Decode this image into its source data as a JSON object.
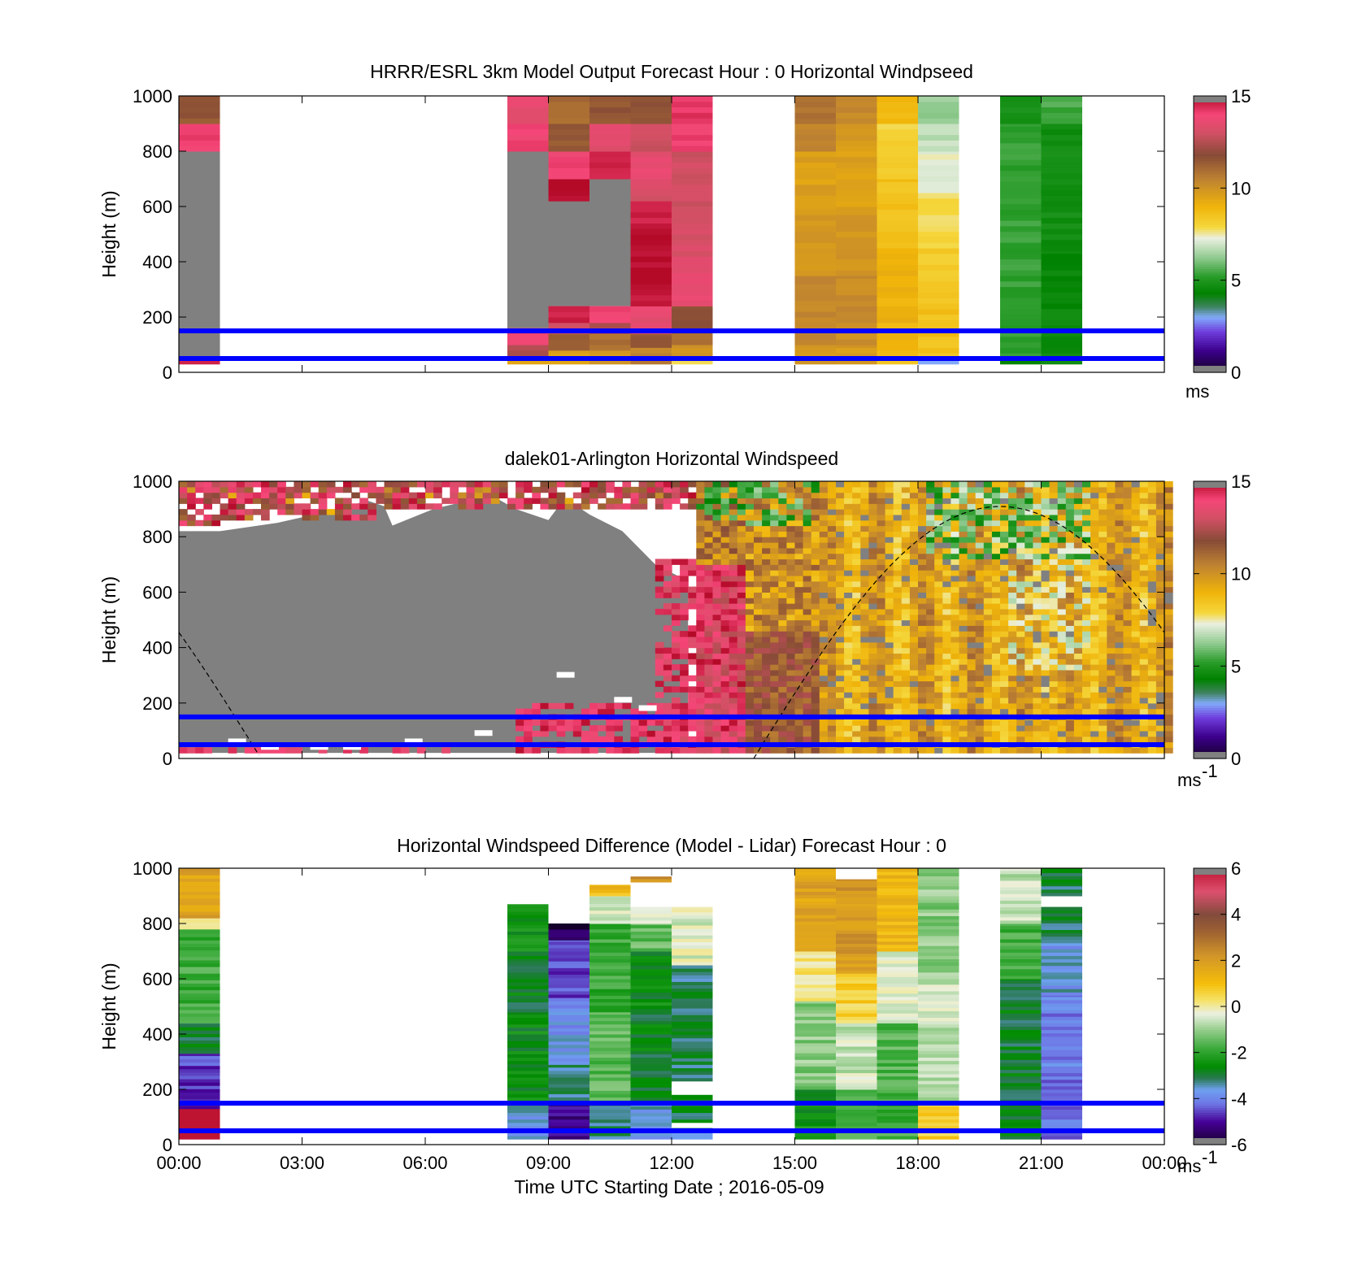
{
  "chart_data": [
    {
      "type": "heatmap",
      "title": "HRRR/ESRL 3km Model Output   Forecast Hour : 0 Horizontal Windpseed",
      "ylabel": "Height (m)",
      "ylim": [
        0,
        1000
      ],
      "yticks": [
        "0",
        "200",
        "400",
        "600",
        "800",
        "1000"
      ],
      "xlim": [
        0,
        24
      ],
      "colorbar": {
        "min": 0,
        "max": 15,
        "ticks": [
          "0",
          "5",
          "10",
          "15"
        ],
        "unit": "ms",
        "unit_sup": ""
      },
      "reference_lines": [
        {
          "y": 150,
          "color": "#0000ff"
        },
        {
          "y": 50,
          "color": "#0000ff"
        }
      ],
      "columns": [
        {
          "x0": 0.0,
          "x1": 1.0,
          "cells": [
            [
              30,
              50,
              14.5
            ],
            [
              50,
              800,
              -1
            ],
            [
              800,
              900,
              14
            ],
            [
              900,
              1000,
              11.5
            ]
          ]
        },
        {
          "x0": 8.0,
          "x1": 9.0,
          "cells": [
            [
              30,
              60,
              9.5
            ],
            [
              60,
              100,
              12.5
            ],
            [
              100,
              160,
              14
            ],
            [
              160,
              800,
              -1
            ],
            [
              800,
              900,
              14
            ],
            [
              900,
              1000,
              13.5
            ]
          ]
        },
        {
          "x0": 9.0,
          "x1": 10.0,
          "cells": [
            [
              30,
              80,
              9.5
            ],
            [
              80,
              140,
              11.5
            ],
            [
              140,
              180,
              13
            ],
            [
              180,
              240,
              14.5
            ],
            [
              240,
              620,
              -1
            ],
            [
              620,
              700,
              15
            ],
            [
              700,
              800,
              14
            ],
            [
              800,
              900,
              11.5
            ],
            [
              900,
              1000,
              11
            ]
          ]
        },
        {
          "x0": 10.0,
          "x1": 11.0,
          "cells": [
            [
              30,
              80,
              10
            ],
            [
              80,
              140,
              11
            ],
            [
              140,
              180,
              12.5
            ],
            [
              180,
              240,
              14
            ],
            [
              240,
              700,
              -1
            ],
            [
              700,
              800,
              14.5
            ],
            [
              800,
              900,
              13.5
            ],
            [
              900,
              1000,
              11.5
            ]
          ]
        },
        {
          "x0": 11.0,
          "x1": 12.0,
          "cells": [
            [
              30,
              90,
              10.5
            ],
            [
              90,
              140,
              11.5
            ],
            [
              140,
              240,
              13.5
            ],
            [
              240,
              320,
              14.8
            ],
            [
              320,
              520,
              15
            ],
            [
              520,
              620,
              14.6
            ],
            [
              620,
              700,
              13.2
            ],
            [
              700,
              800,
              13.5
            ],
            [
              800,
              900,
              13
            ],
            [
              900,
              1000,
              11.5
            ]
          ]
        },
        {
          "x0": 12.0,
          "x1": 13.0,
          "cells": [
            [
              30,
              50,
              8
            ],
            [
              50,
              100,
              10
            ],
            [
              100,
              150,
              11
            ],
            [
              150,
              240,
              11.8
            ],
            [
              240,
              420,
              13.5
            ],
            [
              420,
              600,
              13.2
            ],
            [
              600,
              800,
              13
            ],
            [
              800,
              900,
              14
            ],
            [
              900,
              1000,
              14.2
            ]
          ]
        },
        {
          "x0": 15.0,
          "x1": 16.0,
          "cells": [
            [
              30,
              100,
              9.8
            ],
            [
              100,
              350,
              10.4
            ],
            [
              350,
              600,
              9.8
            ],
            [
              600,
              800,
              9.6
            ],
            [
              800,
              900,
              10.3
            ],
            [
              900,
              1000,
              10.8
            ]
          ]
        },
        {
          "x0": 16.0,
          "x1": 17.0,
          "cells": [
            [
              30,
              100,
              9.8
            ],
            [
              100,
              350,
              10.2
            ],
            [
              350,
              600,
              9.9
            ],
            [
              600,
              800,
              9.6
            ],
            [
              800,
              900,
              9.8
            ],
            [
              900,
              1000,
              10.3
            ]
          ]
        },
        {
          "x0": 17.0,
          "x1": 18.0,
          "cells": [
            [
              30,
              60,
              8.4
            ],
            [
              60,
              250,
              9.0
            ],
            [
              250,
              450,
              9.0
            ],
            [
              450,
              700,
              8.6
            ],
            [
              700,
              800,
              8.1
            ],
            [
              800,
              900,
              8.0
            ],
            [
              900,
              1000,
              8.8
            ]
          ]
        },
        {
          "x0": 18.0,
          "x1": 19.0,
          "cells": [
            [
              30,
              50,
              3
            ],
            [
              50,
              250,
              8.6
            ],
            [
              250,
              450,
              8.3
            ],
            [
              450,
              650,
              7.9
            ],
            [
              650,
              800,
              7.3
            ],
            [
              800,
              900,
              6.8
            ],
            [
              900,
              1000,
              6.4
            ]
          ]
        },
        {
          "x0": 20.0,
          "x1": 21.0,
          "cells": [
            [
              30,
              50,
              4.2
            ],
            [
              50,
              900,
              5.3
            ],
            [
              900,
              1000,
              4.8
            ]
          ]
        },
        {
          "x0": 21.0,
          "x1": 22.0,
          "cells": [
            [
              30,
              440,
              4.5
            ],
            [
              440,
              900,
              4.7
            ],
            [
              900,
              1000,
              5.5
            ]
          ]
        }
      ]
    },
    {
      "type": "heatmap",
      "title": "dalek01-Arlington  Horizontal Windspeed",
      "ylabel": "Height (m)",
      "ylim": [
        0,
        1000
      ],
      "yticks": [
        "0",
        "200",
        "400",
        "600",
        "800",
        "1000"
      ],
      "xlim": [
        0,
        24
      ],
      "colorbar": {
        "min": 0,
        "max": 15,
        "ticks": [
          "0",
          "5",
          "10",
          "15"
        ],
        "unit": "ms",
        "unit_sup": "-1"
      },
      "reference_lines": [
        {
          "y": 150,
          "color": "#0000ff"
        },
        {
          "y": 50,
          "color": "#0000ff"
        }
      ],
      "curve": {
        "amplitude_m": 909,
        "peak_time_h": 20.0,
        "period_h": 24,
        "color": "#000000",
        "dash": true
      },
      "profile_cells": [
        {
          "x0": 0.0,
          "x1": 2.2,
          "y0": 800,
          "y1": 1000,
          "value": 12.5
        },
        {
          "x0": 2.2,
          "x1": 4.8,
          "y0": 850,
          "y1": 960,
          "value": 14.2
        },
        {
          "x0": 4.8,
          "x1": 8.2,
          "y0": 840,
          "y1": 1000,
          "value": 13.5
        },
        {
          "x0": 8.2,
          "x1": 9.2,
          "y0": 40,
          "y1": 160,
          "value": 14.5
        },
        {
          "x0": 11.6,
          "x1": 12.4,
          "y0": 40,
          "y1": 680,
          "value": 14.2
        },
        {
          "x0": 12.4,
          "x1": 13.5,
          "y0": 30,
          "y1": 1000,
          "value": 11.8
        },
        {
          "x0": 13.0,
          "x1": 15.5,
          "y0": 30,
          "y1": 1000,
          "value": 10.6
        },
        {
          "x0": 15.5,
          "x1": 24.0,
          "y0": 30,
          "y1": 1000,
          "value": 8.4
        }
      ],
      "gray_region_note": "values above colorbar range shown grey"
    },
    {
      "type": "heatmap",
      "title": "Horizontal Windspeed Difference (Model - Lidar) Forecast Hour : 0",
      "ylabel": "Height (m)",
      "xlabel": "Time UTC  Starting Date ; 2016-05-09",
      "ylim": [
        0,
        1000
      ],
      "yticks": [
        "0",
        "200",
        "400",
        "600",
        "800",
        "1000"
      ],
      "xlim": [
        0,
        24
      ],
      "xticks": [
        "00:00",
        "03:00",
        "06:00",
        "09:00",
        "12:00",
        "15:00",
        "18:00",
        "21:00",
        "00:00"
      ],
      "colorbar": {
        "min": -6,
        "max": 6,
        "ticks": [
          "-6",
          "-4",
          "-2",
          "0",
          "2",
          "4",
          "6"
        ],
        "unit": "ms",
        "unit_sup": "-1"
      },
      "reference_lines": [
        {
          "y": 150,
          "color": "#0000ff"
        },
        {
          "y": 50,
          "color": "#0000ff"
        }
      ],
      "columns": [
        {
          "x0": 0.0,
          "x1": 1.0,
          "cells": [
            [
              20,
              130,
              7
            ],
            [
              130,
              330,
              -4.6
            ],
            [
              330,
              440,
              -2.8
            ],
            [
              440,
              780,
              -1.8
            ],
            [
              780,
              820,
              -0.3
            ],
            [
              820,
              1000,
              1.8
            ]
          ]
        },
        {
          "x0": 8.0,
          "x1": 9.0,
          "cells": [
            [
              20,
              160,
              -3.5
            ],
            [
              160,
              480,
              -2.6
            ],
            [
              480,
              700,
              -2.8
            ],
            [
              700,
              870,
              -2.4
            ]
          ]
        },
        {
          "x0": 9.0,
          "x1": 10.0,
          "cells": [
            [
              20,
              160,
              -5.2
            ],
            [
              160,
              290,
              -3.2
            ],
            [
              290,
              520,
              -3.8
            ],
            [
              520,
              740,
              -4.6
            ],
            [
              740,
              780,
              -5.3
            ],
            [
              780,
              800,
              -5.8
            ]
          ]
        },
        {
          "x0": 10.0,
          "x1": 11.0,
          "cells": [
            [
              20,
              160,
              -3.3
            ],
            [
              160,
              480,
              -1.5
            ],
            [
              480,
              800,
              -1.9
            ],
            [
              800,
              900,
              -0.6
            ],
            [
              900,
              940,
              1.1
            ]
          ]
        },
        {
          "x0": 11.0,
          "x1": 12.0,
          "cells": [
            [
              20,
              160,
              -3.6
            ],
            [
              160,
              480,
              -2.8
            ],
            [
              480,
              700,
              -2.6
            ],
            [
              700,
              800,
              -1.4
            ],
            [
              800,
              860,
              -0.4
            ],
            [
              950,
              970,
              2.2
            ]
          ]
        },
        {
          "x0": 12.0,
          "x1": 13.0,
          "cells": [
            [
              20,
              60,
              -3.2
            ],
            [
              80,
              180,
              -2.9
            ],
            [
              230,
              650,
              -3.1
            ],
            [
              650,
              860,
              -0.4
            ]
          ]
        },
        {
          "x0": 15.0,
          "x1": 16.0,
          "cells": [
            [
              20,
              200,
              -2.4
            ],
            [
              200,
              520,
              -1.1
            ],
            [
              520,
              700,
              0.2
            ],
            [
              700,
              1000,
              1.8
            ]
          ]
        },
        {
          "x0": 16.0,
          "x1": 17.0,
          "cells": [
            [
              20,
              200,
              -1.8
            ],
            [
              200,
              440,
              -0.6
            ],
            [
              440,
              620,
              0.6
            ],
            [
              620,
              960,
              2.1
            ]
          ]
        },
        {
          "x0": 17.0,
          "x1": 18.0,
          "cells": [
            [
              20,
              200,
              -1.8
            ],
            [
              200,
              440,
              -1.6
            ],
            [
              440,
              700,
              -0.4
            ],
            [
              700,
              1000,
              1.3
            ]
          ]
        },
        {
          "x0": 18.0,
          "x1": 19.0,
          "cells": [
            [
              20,
              160,
              0.6
            ],
            [
              160,
              600,
              -0.6
            ],
            [
              600,
              1000,
              -1.1
            ]
          ]
        },
        {
          "x0": 20.0,
          "x1": 21.0,
          "cells": [
            [
              20,
              600,
              -2.9
            ],
            [
              600,
              800,
              -1.8
            ],
            [
              800,
              1000,
              -0.6
            ]
          ]
        },
        {
          "x0": 21.0,
          "x1": 22.0,
          "cells": [
            [
              20,
              200,
              -4.2
            ],
            [
              200,
              540,
              -4.1
            ],
            [
              540,
              730,
              -3.6
            ],
            [
              730,
              860,
              -3.0
            ],
            [
              900,
              1000,
              -3.0
            ]
          ]
        }
      ]
    }
  ]
}
